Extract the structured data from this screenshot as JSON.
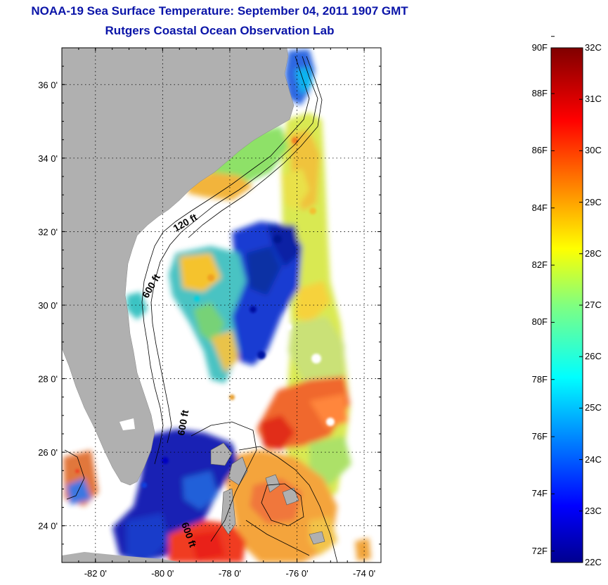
{
  "title": {
    "line1": "NOAA-19 Sea Surface Temperature:  September 04, 2011 1907 GMT",
    "line2": "Rutgers Coastal Ocean Observation Lab"
  },
  "map": {
    "lat_labels": [
      "36 0'",
      "34 0'",
      "32 0'",
      "30 0'",
      "28 0'",
      "26 0'",
      "24 0'"
    ],
    "lon_labels": [
      "-82 0'",
      "-80 0'",
      "-78 0'",
      "-76 0'",
      "-74 0'"
    ],
    "lat_values": [
      36,
      34,
      32,
      30,
      28,
      26,
      24
    ],
    "lon_values": [
      -82,
      -80,
      -78,
      -76,
      -74
    ],
    "lat_range": [
      23.0,
      37.0
    ],
    "lon_range": [
      -83.0,
      -73.5
    ],
    "contour_labels": [
      "120 ft",
      "600 ft",
      "600 ft",
      "600 ft"
    ],
    "land_color": "#b0b0b0",
    "no_data_color": "#ffffff"
  },
  "colorbar": {
    "fahrenheit_labels": [
      "90F",
      "88F",
      "86F",
      "84F",
      "82F",
      "80F",
      "78F",
      "76F",
      "74F",
      "72F"
    ],
    "celsius_labels": [
      "32C",
      "31C",
      "30C",
      "29C",
      "28C",
      "27C",
      "26C",
      "25C",
      "24C",
      "23C",
      "22C"
    ],
    "f_values": [
      90,
      88,
      86,
      84,
      82,
      80,
      78,
      76,
      74,
      72
    ],
    "c_values": [
      32,
      31,
      30,
      29,
      28,
      27,
      26,
      25,
      24,
      23,
      22
    ],
    "colormap": "jet",
    "min_c": 22,
    "max_c": 32
  }
}
